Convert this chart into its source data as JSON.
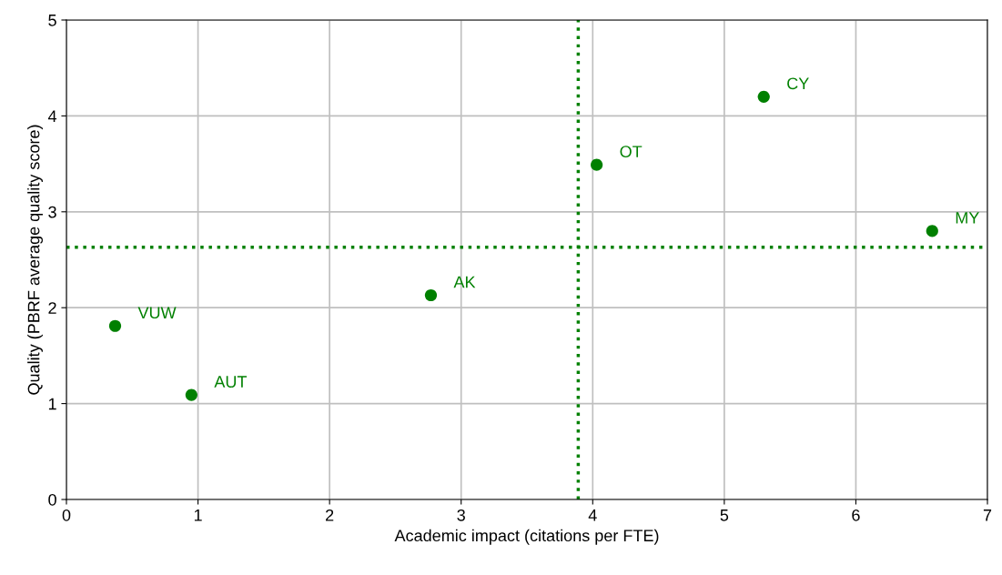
{
  "chart_data": {
    "type": "scatter",
    "xlabel": "Academic impact (citations per FTE)",
    "ylabel": "Quality (PBRF average quality score)",
    "x": [
      0.37,
      0.95,
      2.77,
      4.03,
      5.3,
      6.58
    ],
    "series": [
      {
        "color": "#008000",
        "values": [
          1.81,
          1.09,
          2.13,
          3.49,
          4.2,
          2.8
        ]
      }
    ],
    "marker": "circle",
    "annotations": [
      {
        "text": "VUW",
        "x": 0.37,
        "y": 1.81
      },
      {
        "text": "AUT",
        "x": 0.95,
        "y": 1.09
      },
      {
        "text": "AK",
        "x": 2.77,
        "y": 2.13
      },
      {
        "text": "OT",
        "x": 4.03,
        "y": 3.49
      },
      {
        "text": "CY",
        "x": 5.3,
        "y": 4.2
      },
      {
        "text": "MY",
        "x": 6.58,
        "y": 2.8
      }
    ],
    "ref_lines": [
      {
        "axis": "x",
        "value": 3.89,
        "color": "#008000",
        "line_style": "dotted"
      },
      {
        "axis": "y",
        "value": 2.63,
        "color": "#008000",
        "line_style": "dotted"
      }
    ],
    "xlim": [
      0,
      7
    ],
    "xticks": [
      0,
      1,
      2,
      3,
      4,
      5,
      6,
      7
    ],
    "ylim": [
      0,
      5
    ],
    "yticks": [
      0,
      1,
      2,
      3,
      4,
      5
    ],
    "grid": true
  }
}
